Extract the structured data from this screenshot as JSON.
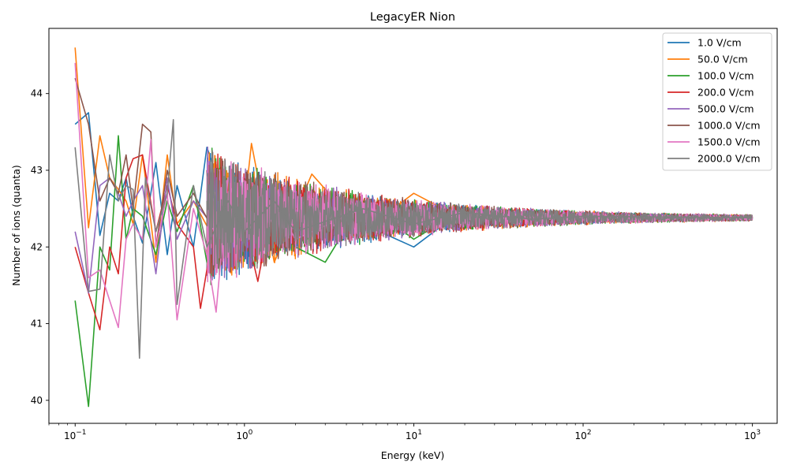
{
  "chart_data": {
    "type": "line",
    "title": "LegacyER Nion",
    "xlabel": "Energy (keV)",
    "ylabel": "Number of ions (quanta)",
    "xscale": "log",
    "xlim": [
      0.07,
      1400
    ],
    "ylim": [
      39.7,
      44.85
    ],
    "x_ticks": [
      {
        "value": 0.1,
        "base": "10",
        "exp": "−1"
      },
      {
        "value": 1,
        "base": "10",
        "exp": "0"
      },
      {
        "value": 10,
        "base": "10",
        "exp": "1"
      },
      {
        "value": 100,
        "base": "10",
        "exp": "2"
      },
      {
        "value": 1000,
        "base": "10",
        "exp": "3"
      }
    ],
    "y_ticks": [
      40,
      41,
      42,
      43,
      44
    ],
    "grid": false,
    "legend_position": "top-right",
    "noise_description": "fluctuation amplitude shrinks roughly as 1/sqrt(E) around a mean of ~42.38",
    "series": [
      {
        "name": "1.0 V/cm",
        "color": "#1f77b4",
        "points": [
          [
            0.1,
            43.6
          ],
          [
            0.12,
            43.75
          ],
          [
            0.14,
            42.15
          ],
          [
            0.16,
            42.7
          ],
          [
            0.18,
            42.6
          ],
          [
            0.2,
            42.9
          ],
          [
            0.22,
            42.4
          ],
          [
            0.25,
            42.05
          ],
          [
            0.3,
            43.1
          ],
          [
            0.35,
            41.9
          ],
          [
            0.4,
            42.8
          ],
          [
            0.5,
            42.0
          ],
          [
            0.6,
            43.3
          ],
          [
            0.8,
            42.5
          ],
          [
            1.0,
            42.4
          ],
          [
            1.5,
            42.2
          ],
          [
            2.0,
            42.6
          ],
          [
            5.0,
            42.3
          ],
          [
            10,
            42.0
          ],
          [
            20,
            42.5
          ],
          [
            50,
            42.35
          ],
          [
            100,
            42.4
          ],
          [
            300,
            42.37
          ],
          [
            1000,
            42.38
          ]
        ]
      },
      {
        "name": "50.0 V/cm",
        "color": "#ff7f0e",
        "points": [
          [
            0.1,
            44.6
          ],
          [
            0.12,
            42.25
          ],
          [
            0.14,
            43.45
          ],
          [
            0.16,
            42.9
          ],
          [
            0.18,
            42.75
          ],
          [
            0.2,
            42.6
          ],
          [
            0.22,
            42.3
          ],
          [
            0.25,
            43.2
          ],
          [
            0.3,
            41.8
          ],
          [
            0.35,
            43.2
          ],
          [
            0.4,
            42.3
          ],
          [
            0.5,
            42.6
          ],
          [
            0.7,
            42.0
          ],
          [
            1.0,
            42.5
          ],
          [
            1.1,
            43.35
          ],
          [
            1.5,
            41.8
          ],
          [
            2.5,
            42.95
          ],
          [
            5.0,
            42.2
          ],
          [
            10,
            42.7
          ],
          [
            20,
            42.35
          ],
          [
            50,
            42.4
          ],
          [
            100,
            42.38
          ],
          [
            1000,
            42.38
          ]
        ]
      },
      {
        "name": "100.0 V/cm",
        "color": "#2ca02c",
        "points": [
          [
            0.1,
            41.3
          ],
          [
            0.12,
            39.92
          ],
          [
            0.14,
            42.0
          ],
          [
            0.16,
            41.7
          ],
          [
            0.18,
            43.45
          ],
          [
            0.2,
            42.1
          ],
          [
            0.22,
            42.5
          ],
          [
            0.25,
            42.4
          ],
          [
            0.3,
            41.9
          ],
          [
            0.35,
            42.6
          ],
          [
            0.4,
            42.2
          ],
          [
            0.5,
            42.8
          ],
          [
            0.6,
            41.8
          ],
          [
            0.8,
            42.5
          ],
          [
            1.0,
            42.3
          ],
          [
            1.5,
            42.6
          ],
          [
            2.0,
            42.0
          ],
          [
            3.0,
            41.8
          ],
          [
            5.0,
            42.6
          ],
          [
            10,
            42.1
          ],
          [
            20,
            42.5
          ],
          [
            50,
            42.35
          ],
          [
            100,
            42.4
          ],
          [
            1000,
            42.37
          ]
        ]
      },
      {
        "name": "200.0 V/cm",
        "color": "#d62728",
        "points": [
          [
            0.1,
            42.0
          ],
          [
            0.12,
            41.4
          ],
          [
            0.14,
            40.92
          ],
          [
            0.16,
            42.0
          ],
          [
            0.18,
            41.65
          ],
          [
            0.2,
            42.9
          ],
          [
            0.22,
            43.15
          ],
          [
            0.25,
            43.2
          ],
          [
            0.3,
            42.2
          ],
          [
            0.35,
            42.8
          ],
          [
            0.4,
            42.3
          ],
          [
            0.5,
            42.0
          ],
          [
            0.55,
            41.2
          ],
          [
            0.7,
            42.6
          ],
          [
            1.0,
            42.3
          ],
          [
            1.2,
            41.55
          ],
          [
            1.5,
            42.7
          ],
          [
            2.0,
            42.2
          ],
          [
            5.0,
            42.5
          ],
          [
            10,
            42.25
          ],
          [
            20,
            42.45
          ],
          [
            50,
            42.36
          ],
          [
            100,
            42.4
          ],
          [
            1000,
            42.38
          ]
        ]
      },
      {
        "name": "500.0 V/cm",
        "color": "#9467bd",
        "points": [
          [
            0.1,
            42.2
          ],
          [
            0.12,
            41.4
          ],
          [
            0.14,
            42.8
          ],
          [
            0.16,
            42.9
          ],
          [
            0.18,
            42.7
          ],
          [
            0.2,
            42.4
          ],
          [
            0.22,
            42.6
          ],
          [
            0.25,
            42.8
          ],
          [
            0.3,
            41.65
          ],
          [
            0.35,
            42.9
          ],
          [
            0.4,
            42.1
          ],
          [
            0.5,
            42.6
          ],
          [
            0.7,
            42.2
          ],
          [
            1.0,
            42.5
          ],
          [
            1.5,
            42.3
          ],
          [
            2.0,
            42.6
          ],
          [
            5.0,
            42.2
          ],
          [
            10,
            42.45
          ],
          [
            20,
            42.3
          ],
          [
            50,
            42.4
          ],
          [
            100,
            42.37
          ],
          [
            1000,
            42.38
          ]
        ]
      },
      {
        "name": "1000.0 V/cm",
        "color": "#8c564b",
        "points": [
          [
            0.1,
            44.2
          ],
          [
            0.12,
            43.6
          ],
          [
            0.14,
            42.6
          ],
          [
            0.16,
            42.9
          ],
          [
            0.18,
            42.7
          ],
          [
            0.2,
            43.2
          ],
          [
            0.22,
            42.5
          ],
          [
            0.25,
            43.6
          ],
          [
            0.28,
            43.5
          ],
          [
            0.3,
            42.0
          ],
          [
            0.35,
            43.0
          ],
          [
            0.4,
            42.4
          ],
          [
            0.5,
            42.7
          ],
          [
            0.7,
            42.1
          ],
          [
            1.0,
            42.6
          ],
          [
            1.5,
            42.2
          ],
          [
            2.0,
            42.5
          ],
          [
            5.0,
            42.3
          ],
          [
            10,
            42.45
          ],
          [
            20,
            42.35
          ],
          [
            50,
            42.4
          ],
          [
            100,
            42.38
          ],
          [
            1000,
            42.38
          ]
        ]
      },
      {
        "name": "1500.0 V/cm",
        "color": "#e377c2",
        "points": [
          [
            0.1,
            44.4
          ],
          [
            0.12,
            41.6
          ],
          [
            0.14,
            41.7
          ],
          [
            0.16,
            41.3
          ],
          [
            0.18,
            40.95
          ],
          [
            0.2,
            42.1
          ],
          [
            0.22,
            42.3
          ],
          [
            0.25,
            42.1
          ],
          [
            0.28,
            43.4
          ],
          [
            0.3,
            42.0
          ],
          [
            0.35,
            42.7
          ],
          [
            0.4,
            41.05
          ],
          [
            0.5,
            42.5
          ],
          [
            0.6,
            41.9
          ],
          [
            0.68,
            41.15
          ],
          [
            0.8,
            42.9
          ],
          [
            1.0,
            42.2
          ],
          [
            1.5,
            42.6
          ],
          [
            2.0,
            42.1
          ],
          [
            5.0,
            42.5
          ],
          [
            10,
            42.3
          ],
          [
            20,
            42.4
          ],
          [
            50,
            42.36
          ],
          [
            100,
            42.4
          ],
          [
            1000,
            42.38
          ]
        ]
      },
      {
        "name": "2000.0 V/cm",
        "color": "#7f7f7f",
        "points": [
          [
            0.1,
            43.3
          ],
          [
            0.12,
            41.42
          ],
          [
            0.14,
            41.45
          ],
          [
            0.16,
            43.2
          ],
          [
            0.18,
            42.6
          ],
          [
            0.2,
            42.8
          ],
          [
            0.22,
            42.75
          ],
          [
            0.24,
            40.55
          ],
          [
            0.26,
            42.9
          ],
          [
            0.3,
            42.2
          ],
          [
            0.35,
            42.7
          ],
          [
            0.38,
            43.66
          ],
          [
            0.4,
            41.25
          ],
          [
            0.5,
            42.8
          ],
          [
            0.6,
            42.0
          ],
          [
            0.8,
            42.6
          ],
          [
            1.0,
            42.2
          ],
          [
            1.5,
            42.6
          ],
          [
            2.0,
            42.2
          ],
          [
            5.0,
            42.5
          ],
          [
            10,
            42.3
          ],
          [
            20,
            42.45
          ],
          [
            50,
            42.36
          ],
          [
            100,
            42.4
          ],
          [
            1000,
            42.38
          ]
        ]
      }
    ]
  }
}
